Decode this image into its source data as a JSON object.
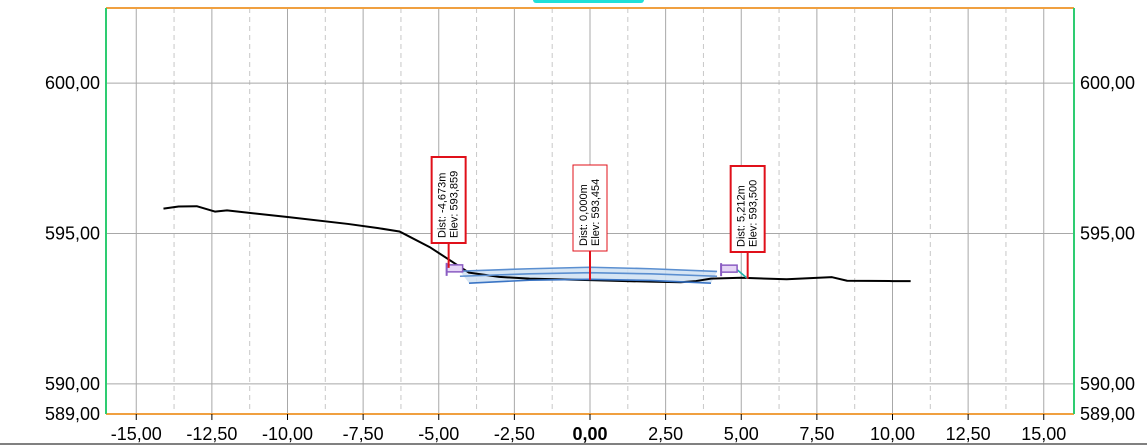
{
  "chart_data": {
    "type": "line",
    "title": "",
    "xlabel": "",
    "ylabel": "",
    "xlim": [
      -16.0,
      16.0
    ],
    "ylim": [
      589.0,
      602.5
    ],
    "x_ticks": [
      -15,
      -12.5,
      -10,
      -7.5,
      -5,
      -2.5,
      0,
      2.5,
      5,
      7.5,
      10,
      12.5,
      15
    ],
    "x_tick_labels": [
      "-15,00",
      "-12,50",
      "-10,00",
      "-7,50",
      "-5,00",
      "-2,50",
      "0,00",
      "2,50",
      "5,00",
      "7,50",
      "10,00",
      "12,50",
      "15,00"
    ],
    "x_minor_ticks": [
      -13.75,
      -11.25,
      -8.75,
      -6.25,
      -3.75,
      -1.25,
      1.25,
      3.75,
      6.25,
      8.75,
      11.25,
      13.75
    ],
    "y_ticks_left": [
      600,
      595,
      590,
      589
    ],
    "y_tick_labels_left": [
      "600,00",
      "595,00",
      "590,00",
      "589,00"
    ],
    "y_ticks_right": [
      600,
      595,
      590,
      589
    ],
    "y_tick_labels_right": [
      "600,00",
      "595,00",
      "590,00",
      "589,00"
    ],
    "grid_y": [
      600,
      595,
      590
    ],
    "grid": true,
    "series": [
      {
        "role": "ground",
        "color": "#000000",
        "x": [
          -14.1,
          -13.6,
          -13.0,
          -12.4,
          -12.0,
          -10.0,
          -8.0,
          -7.0,
          -6.3,
          -5.3,
          -4.0,
          -3.0,
          -2.0,
          0.0,
          2.0,
          3.0,
          3.5,
          4.0,
          5.0,
          6.5,
          8.0,
          8.5,
          10.0,
          10.6
        ],
        "y": [
          595.83,
          595.9,
          595.91,
          595.73,
          595.77,
          595.55,
          595.32,
          595.18,
          595.07,
          594.55,
          593.7,
          593.56,
          593.5,
          593.45,
          593.4,
          593.38,
          593.42,
          593.5,
          593.53,
          593.48,
          593.55,
          593.43,
          593.42,
          593.42
        ]
      },
      {
        "role": "road-surface",
        "color": "#5b8fd0",
        "fill": "#cfe0f2",
        "x": [
          -4.3,
          -2.0,
          0.0,
          2.0,
          4.2
        ],
        "y": [
          593.75,
          593.83,
          593.88,
          593.83,
          593.74
        ]
      },
      {
        "role": "road-layer",
        "color": "#5b8fd0",
        "x": [
          -4.3,
          -2.0,
          0.0,
          2.0,
          4.2
        ],
        "y": [
          593.58,
          593.66,
          593.7,
          593.66,
          593.58
        ]
      },
      {
        "role": "road-bottom",
        "color": "#3a74c4",
        "x": [
          -4.0,
          -2.0,
          0.0,
          2.0,
          4.0
        ],
        "y": [
          593.35,
          593.45,
          593.48,
          593.44,
          593.35
        ]
      },
      {
        "role": "fill-slope",
        "color": "#20b2aa",
        "x": [
          4.8,
          5.212
        ],
        "y": [
          593.85,
          593.5
        ]
      }
    ],
    "curbs": [
      {
        "x": -4.673,
        "y": 593.859,
        "color": "#8a5cc2"
      },
      {
        "x": 4.4,
        "y": 593.85,
        "color": "#8a5cc2"
      }
    ],
    "annotations": [
      {
        "x": -4.673,
        "y": 593.859,
        "line1": "Dist: -4,673m",
        "line2": "Elev: 593,859",
        "color": "#e0101a"
      },
      {
        "x": 0.0,
        "y": 593.454,
        "line1": "Dist: 0,000m",
        "line2": "Elev: 593,454",
        "color": "#e0101a"
      },
      {
        "x": 5.212,
        "y": 593.5,
        "line1": "Dist: 5,212m",
        "line2": "Elev: 593,500",
        "color": "#e0101a"
      }
    ],
    "colors": {
      "frame_top": "#f0a040",
      "frame_bottom": "#f0a040",
      "frame_sides": "#2ecc71",
      "grid": "#a8a8a8",
      "axis_tab": "#1fe0d8"
    }
  }
}
